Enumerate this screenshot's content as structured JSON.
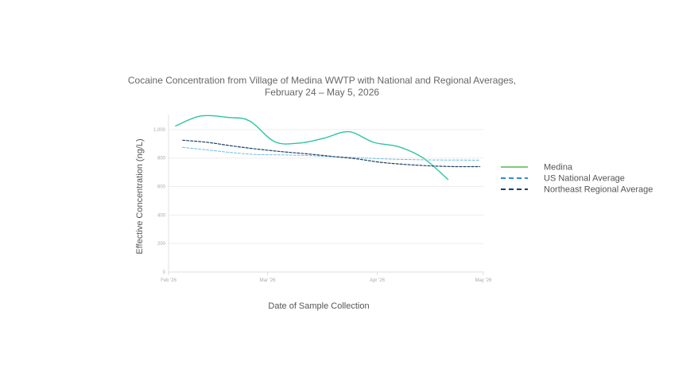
{
  "chart_data": {
    "type": "line",
    "title_lines": [
      "Cocaine Concentration from Village of Medina WWTP with National and Regional Averages,",
      "February 24 – May 5, 2026"
    ],
    "xlabel": "Date of Sample Collection",
    "ylabel": "Effective Concentration (ng/L)",
    "xlim": [
      "2026-02-01",
      "2026-05-01"
    ],
    "ylim": [
      0,
      1100
    ],
    "x_ticks": [
      {
        "date": "2026-02-01",
        "label": "Feb '26"
      },
      {
        "date": "2026-03-01",
        "label": "Mar '26"
      },
      {
        "date": "2026-04-01",
        "label": "Apr '26"
      },
      {
        "date": "2026-05-01",
        "label": "May '26"
      }
    ],
    "y_ticks": [
      {
        "value": 0,
        "label": "0"
      },
      {
        "value": 200,
        "label": "200"
      },
      {
        "value": 400,
        "label": "400"
      },
      {
        "value": 600,
        "label": "600"
      },
      {
        "value": 800,
        "label": "800"
      },
      {
        "value": 1000,
        "label": "1,000"
      }
    ],
    "grid": true,
    "legend_position": "right",
    "series": [
      {
        "name": "Medina",
        "color": "#2ec4a0",
        "legend_color": "#7dc97a",
        "style": "solid",
        "points": [
          {
            "x": "2026-02-03",
            "y": 1025
          },
          {
            "x": "2026-02-10",
            "y": 1095
          },
          {
            "x": "2026-02-18",
            "y": 1085
          },
          {
            "x": "2026-02-24",
            "y": 1060
          },
          {
            "x": "2026-03-03",
            "y": 915
          },
          {
            "x": "2026-03-10",
            "y": 905
          },
          {
            "x": "2026-03-17",
            "y": 940
          },
          {
            "x": "2026-03-24",
            "y": 985
          },
          {
            "x": "2026-03-31",
            "y": 910
          },
          {
            "x": "2026-04-07",
            "y": 880
          },
          {
            "x": "2026-04-14",
            "y": 800
          },
          {
            "x": "2026-04-21",
            "y": 650
          }
        ]
      },
      {
        "name": "US National Average",
        "color": "#6bbbe8",
        "legend_color": "#2b8fd6",
        "style": "dashed",
        "points": [
          {
            "x": "2026-02-05",
            "y": 875
          },
          {
            "x": "2026-02-12",
            "y": 857
          },
          {
            "x": "2026-02-19",
            "y": 838
          },
          {
            "x": "2026-02-26",
            "y": 825
          },
          {
            "x": "2026-03-05",
            "y": 822
          },
          {
            "x": "2026-03-12",
            "y": 818
          },
          {
            "x": "2026-03-19",
            "y": 810
          },
          {
            "x": "2026-03-26",
            "y": 803
          },
          {
            "x": "2026-04-02",
            "y": 795
          },
          {
            "x": "2026-04-09",
            "y": 790
          },
          {
            "x": "2026-04-16",
            "y": 787
          },
          {
            "x": "2026-04-23",
            "y": 786
          },
          {
            "x": "2026-04-30",
            "y": 785
          }
        ]
      },
      {
        "name": "Northeast Regional Average",
        "color": "#1d3f66",
        "legend_color": "#1d3f66",
        "style": "dashed",
        "points": [
          {
            "x": "2026-02-05",
            "y": 925
          },
          {
            "x": "2026-02-12",
            "y": 910
          },
          {
            "x": "2026-02-19",
            "y": 885
          },
          {
            "x": "2026-02-26",
            "y": 863
          },
          {
            "x": "2026-03-05",
            "y": 845
          },
          {
            "x": "2026-03-12",
            "y": 830
          },
          {
            "x": "2026-03-19",
            "y": 812
          },
          {
            "x": "2026-03-26",
            "y": 795
          },
          {
            "x": "2026-04-02",
            "y": 770
          },
          {
            "x": "2026-04-09",
            "y": 755
          },
          {
            "x": "2026-04-16",
            "y": 745
          },
          {
            "x": "2026-04-23",
            "y": 740
          },
          {
            "x": "2026-04-30",
            "y": 740
          }
        ]
      }
    ]
  }
}
